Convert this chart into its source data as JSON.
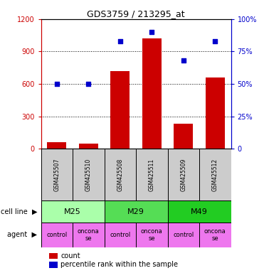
{
  "title": "GDS3759 / 213295_at",
  "samples": [
    "GSM425507",
    "GSM425510",
    "GSM425508",
    "GSM425511",
    "GSM425509",
    "GSM425512"
  ],
  "counts": [
    60,
    50,
    720,
    1020,
    230,
    660
  ],
  "percentile_ranks": [
    50,
    50,
    83,
    90,
    68,
    83
  ],
  "ylim_left": [
    0,
    1200
  ],
  "ylim_right": [
    0,
    100
  ],
  "yticks_left": [
    0,
    300,
    600,
    900,
    1200
  ],
  "yticks_right": [
    0,
    25,
    50,
    75,
    100
  ],
  "ytick_labels_left": [
    "0",
    "300",
    "600",
    "900",
    "1200"
  ],
  "ytick_labels_right": [
    "0%",
    "25%",
    "50%",
    "75%",
    "100%"
  ],
  "bar_color": "#cc0000",
  "dot_color": "#0000cc",
  "cell_lines": [
    {
      "label": "M25",
      "span": [
        0,
        2
      ],
      "color": "#aaffaa"
    },
    {
      "label": "M29",
      "span": [
        2,
        4
      ],
      "color": "#55dd55"
    },
    {
      "label": "M49",
      "span": [
        4,
        6
      ],
      "color": "#22cc22"
    }
  ],
  "agents": [
    "control",
    "onconase",
    "control",
    "onconase",
    "control",
    "onconase"
  ],
  "agent_color": "#ee77ee",
  "grid_color": "#888888",
  "tick_label_color_left": "#cc0000",
  "tick_label_color_right": "#0000cc",
  "legend_count_label": "count",
  "legend_pct_label": "percentile rank within the sample",
  "cell_line_label": "cell line",
  "agent_label": "agent",
  "gsm_bg_color": "#cccccc"
}
